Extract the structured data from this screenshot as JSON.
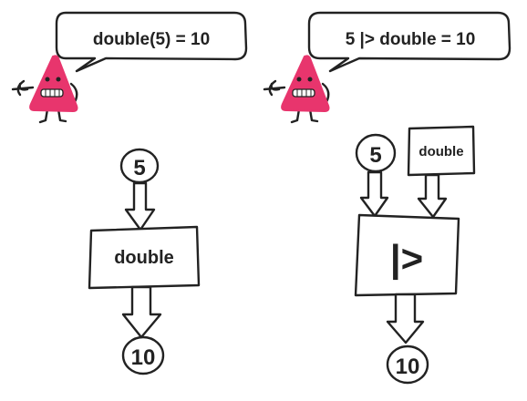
{
  "colors": {
    "mascot": "#e8356d",
    "ink": "#222222",
    "background": "#ffffff"
  },
  "left": {
    "bubble_text": "double(5) = 10",
    "input": "5",
    "function": "double",
    "output": "10"
  },
  "right": {
    "bubble_text": "5 |> double = 10",
    "input": "5",
    "function": "double",
    "operator": "|>",
    "output": "10"
  },
  "icons": [
    "triangle-mascot-icon",
    "arrow-down-icon"
  ]
}
